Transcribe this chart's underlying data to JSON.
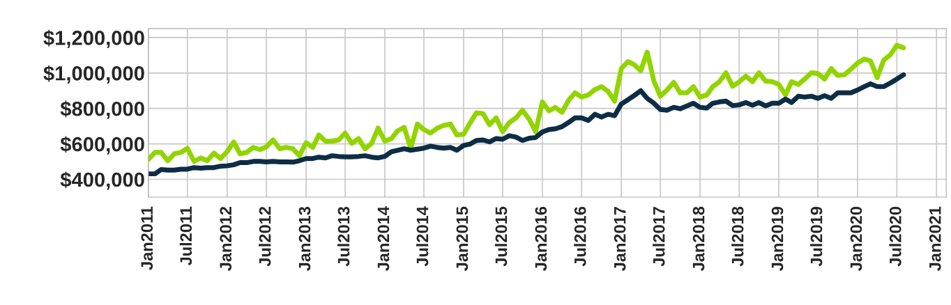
{
  "chart_data": {
    "type": "line",
    "x": [
      "2011-01",
      "2011-02",
      "2011-03",
      "2011-04",
      "2011-05",
      "2011-06",
      "2011-07",
      "2011-08",
      "2011-09",
      "2011-10",
      "2011-11",
      "2011-12",
      "2012-01",
      "2012-02",
      "2012-03",
      "2012-04",
      "2012-05",
      "2012-06",
      "2012-07",
      "2012-08",
      "2012-09",
      "2012-10",
      "2012-11",
      "2012-12",
      "2013-01",
      "2013-02",
      "2013-03",
      "2013-04",
      "2013-05",
      "2013-06",
      "2013-07",
      "2013-08",
      "2013-09",
      "2013-10",
      "2013-11",
      "2013-12",
      "2014-01",
      "2014-02",
      "2014-03",
      "2014-04",
      "2014-05",
      "2014-06",
      "2014-07",
      "2014-08",
      "2014-09",
      "2014-10",
      "2014-11",
      "2014-12",
      "2015-01",
      "2015-02",
      "2015-03",
      "2015-04",
      "2015-05",
      "2015-06",
      "2015-07",
      "2015-08",
      "2015-09",
      "2015-10",
      "2015-11",
      "2015-12",
      "2016-01",
      "2016-02",
      "2016-03",
      "2016-04",
      "2016-05",
      "2016-06",
      "2016-07",
      "2016-08",
      "2016-09",
      "2016-10",
      "2016-11",
      "2016-12",
      "2017-01",
      "2017-02",
      "2017-03",
      "2017-04",
      "2017-05",
      "2017-06",
      "2017-07",
      "2017-08",
      "2017-09",
      "2017-10",
      "2017-11",
      "2017-12",
      "2018-01",
      "2018-02",
      "2018-03",
      "2018-04",
      "2018-05",
      "2018-06",
      "2018-07",
      "2018-08",
      "2018-09",
      "2018-10",
      "2018-11",
      "2018-12",
      "2019-01",
      "2019-02",
      "2019-03",
      "2019-04",
      "2019-05",
      "2019-06",
      "2019-07",
      "2019-08",
      "2019-09",
      "2019-10",
      "2019-11",
      "2019-12",
      "2020-01",
      "2020-02",
      "2020-03",
      "2020-04",
      "2020-05",
      "2020-06",
      "2020-07",
      "2020-08"
    ],
    "series": [
      {
        "color": "#92d400",
        "values": [
          513000,
          552000,
          552000,
          505000,
          544000,
          552000,
          575000,
          501000,
          521000,
          505000,
          548000,
          517000,
          556000,
          611000,
          544000,
          552000,
          580000,
          568000,
          583000,
          622000,
          572000,
          580000,
          572000,
          533000,
          607000,
          580000,
          650000,
          615000,
          615000,
          622000,
          661000,
          603000,
          630000,
          572000,
          603000,
          689000,
          615000,
          630000,
          673000,
          693000,
          575000,
          712000,
          681000,
          661000,
          689000,
          704000,
          712000,
          650000,
          654000,
          720000,
          775000,
          771000,
          708000,
          747000,
          669000,
          720000,
          747000,
          790000,
          739000,
          669000,
          837000,
          786000,
          806000,
          778000,
          845000,
          888000,
          864000,
          876000,
          907000,
          923000,
          896000,
          841000,
          1025000,
          1064000,
          1048000,
          1013000,
          1118000,
          954000,
          869000,
          904000,
          947000,
          888000,
          888000,
          923000,
          864000,
          876000,
          923000,
          951000,
          1001000,
          925000,
          950000,
          982000,
          951000,
          1001000,
          954000,
          951000,
          935000,
          876000,
          951000,
          935000,
          966000,
          1001000,
          997000,
          966000,
          1025000,
          986000,
          990000,
          1021000,
          1056000,
          1079000,
          1068000,
          974000,
          1072000,
          1103000,
          1157000,
          1142000
        ]
      },
      {
        "color": "#0d2d45",
        "values": [
          431000,
          431000,
          455000,
          452000,
          452000,
          457000,
          457000,
          466000,
          463000,
          466000,
          466000,
          474000,
          476000,
          482000,
          494000,
          494000,
          501000,
          501000,
          498000,
          501000,
          498000,
          498000,
          497000,
          505000,
          517000,
          517000,
          525000,
          521000,
          533000,
          529000,
          527000,
          527000,
          529000,
          533000,
          525000,
          521000,
          529000,
          556000,
          564000,
          572000,
          564000,
          570000,
          576000,
          587000,
          580000,
          576000,
          580000,
          564000,
          591000,
          599000,
          619000,
          622000,
          611000,
          630000,
          626000,
          646000,
          638000,
          619000,
          632000,
          636000,
          667000,
          681000,
          685000,
          697000,
          720000,
          747000,
          747000,
          732000,
          767000,
          751000,
          767000,
          759000,
          825000,
          849000,
          872000,
          900000,
          857000,
          829000,
          794000,
          790000,
          806000,
          798000,
          814000,
          829000,
          806000,
          802000,
          829000,
          837000,
          841000,
          816000,
          820000,
          833000,
          818000,
          833000,
          814000,
          829000,
          829000,
          853000,
          833000,
          869000,
          864000,
          869000,
          857000,
          872000,
          857000,
          888000,
          888000,
          888000,
          904000,
          923000,
          939000,
          923000,
          923000,
          943000,
          966000,
          990000
        ]
      }
    ],
    "xlim": [
      "2011-01-01",
      "2021-02-15"
    ],
    "xticks": [
      {
        "value": "2011-01",
        "label": "Jan2011"
      },
      {
        "value": "2011-07",
        "label": "Jul2011"
      },
      {
        "value": "2012-01",
        "label": "Jan2012"
      },
      {
        "value": "2012-07",
        "label": "Jul2012"
      },
      {
        "value": "2013-01",
        "label": "Jan2013"
      },
      {
        "value": "2013-07",
        "label": "Jul2013"
      },
      {
        "value": "2014-01",
        "label": "Jan2014"
      },
      {
        "value": "2014-07",
        "label": "Jul2014"
      },
      {
        "value": "2015-01",
        "label": "Jan2015"
      },
      {
        "value": "2015-07",
        "label": "Jul2015"
      },
      {
        "value": "2016-01",
        "label": "Jan2016"
      },
      {
        "value": "2016-07",
        "label": "Jul2016"
      },
      {
        "value": "2017-01",
        "label": "Jan2017"
      },
      {
        "value": "2017-07",
        "label": "Jul2017"
      },
      {
        "value": "2018-01",
        "label": "Jan2018"
      },
      {
        "value": "2018-07",
        "label": "Jul2018"
      },
      {
        "value": "2019-01",
        "label": "Jan2019"
      },
      {
        "value": "2019-07",
        "label": "Jul2019"
      },
      {
        "value": "2020-01",
        "label": "Jan2020"
      },
      {
        "value": "2020-07",
        "label": "Jul2020"
      },
      {
        "value": "2021-01",
        "label": "Jan2021"
      }
    ],
    "ylim": [
      300000,
      1250000
    ],
    "yticks": [
      {
        "value": 400000,
        "label": "$400,000"
      },
      {
        "value": 600000,
        "label": "$600,000"
      },
      {
        "value": 800000,
        "label": "$800,000"
      },
      {
        "value": 1000000,
        "label": "$1,000,000"
      },
      {
        "value": 1200000,
        "label": "$1,200,000"
      }
    ],
    "grid": true,
    "marker": "none",
    "line_style": "solid"
  }
}
